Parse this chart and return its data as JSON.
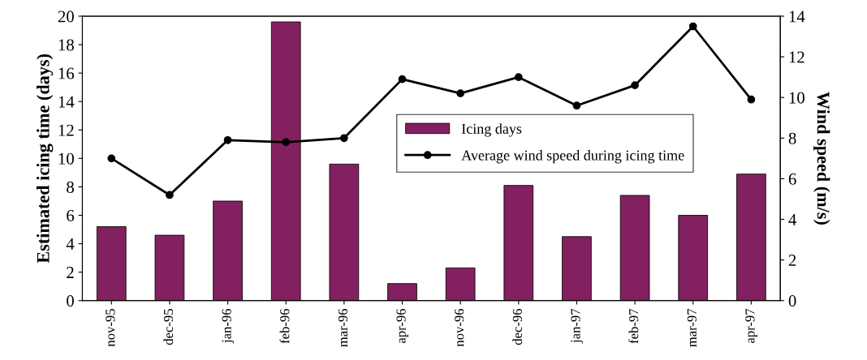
{
  "chart_data": {
    "type": "bar",
    "ylabel": "Estimated icing time (days)",
    "y2label": "Wind speed (m/s)",
    "categories": [
      "nov-95",
      "dec-95",
      "jan-96",
      "feb-96",
      "mar-96",
      "apr-96",
      "nov-96",
      "dec-96",
      "jan-97",
      "feb-97",
      "mar-97",
      "apr-97"
    ],
    "series": [
      {
        "name": "Icing days",
        "color": "#822060",
        "values": [
          5.2,
          4.6,
          7.0,
          19.6,
          9.6,
          1.2,
          2.3,
          8.1,
          4.5,
          7.4,
          6.0,
          8.9
        ]
      },
      {
        "name": "Average wind speed during icing time",
        "type": "line",
        "axis": "y2",
        "color": "#000000",
        "marker": "circle",
        "values": [
          7.0,
          5.2,
          7.9,
          7.8,
          8.0,
          10.9,
          10.2,
          11.0,
          9.6,
          10.6,
          13.5,
          9.9
        ]
      }
    ],
    "ylim": [
      0,
      20
    ],
    "yticks": [
      0,
      2,
      4,
      6,
      8,
      10,
      12,
      14,
      16,
      18,
      20
    ],
    "y2lim": [
      0,
      14
    ],
    "y2ticks": [
      0,
      2,
      4,
      6,
      8,
      10,
      12,
      14
    ],
    "grid": false,
    "legend": "right"
  }
}
